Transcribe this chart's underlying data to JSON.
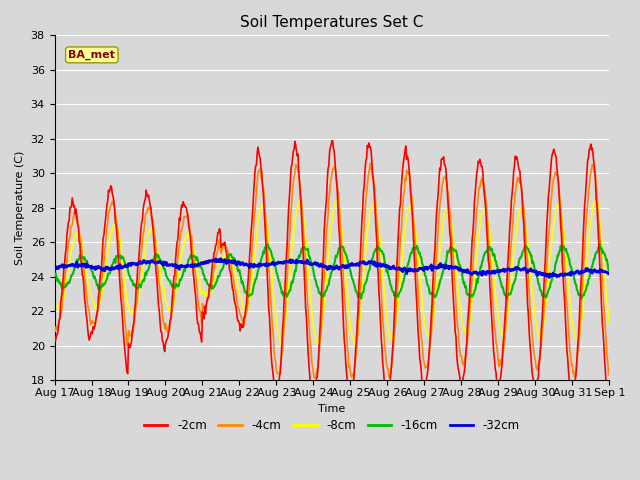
{
  "title": "Soil Temperatures Set C",
  "xlabel": "Time",
  "ylabel": "Soil Temperature (C)",
  "ylim": [
    18,
    38
  ],
  "yticks": [
    18,
    20,
    22,
    24,
    26,
    28,
    30,
    32,
    34,
    36,
    38
  ],
  "bg_color": "#d8d8d8",
  "plot_bg": "#d8d8d8",
  "series_colors": {
    "-2cm": "#ff0000",
    "-4cm": "#ff8800",
    "-8cm": "#ffff00",
    "-16cm": "#00bb00",
    "-32cm": "#0000dd"
  },
  "series_linewidths": {
    "-2cm": 1.2,
    "-4cm": 1.2,
    "-8cm": 1.2,
    "-16cm": 1.5,
    "-32cm": 2.0
  },
  "annotation_text": "BA_met",
  "annotation_color": "#8b0000",
  "annotation_bg": "#ffff99",
  "xtick_labels": [
    "Aug 17",
    "Aug 18",
    "Aug 19",
    "Aug 20",
    "Aug 21",
    "Aug 22",
    "Aug 23",
    "Aug 24",
    "Aug 25",
    "Aug 26",
    "Aug 27",
    "Aug 28",
    "Aug 29",
    "Aug 30",
    "Aug 31",
    "Sep 1"
  ],
  "grid_color": "#ffffff",
  "legend_labels": [
    "-2cm",
    "-4cm",
    "-8cm",
    "-16cm",
    "-32cm"
  ]
}
